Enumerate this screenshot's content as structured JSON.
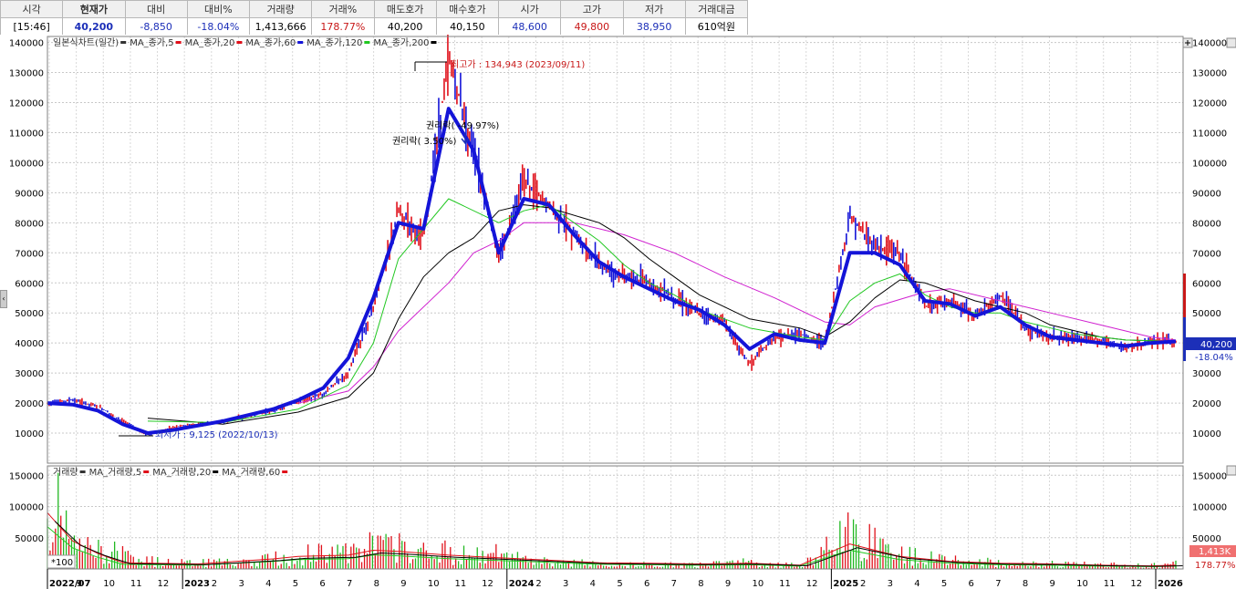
{
  "quote": {
    "headers": [
      "시각",
      "현재가",
      "대비",
      "대비%",
      "거래량",
      "거래%",
      "매도호가",
      "매수호가",
      "시가",
      "고가",
      "저가",
      "거래대금"
    ],
    "values": [
      "[15:46]",
      "40,200",
      "-8,850",
      "-18.04%",
      "1,413,666",
      "178.77%",
      "40,200",
      "40,150",
      "48,600",
      "49,800",
      "38,950",
      "610억원"
    ]
  },
  "price_panel": {
    "legend": [
      {
        "text": "일본식차트(일간)",
        "color": "#333333"
      },
      {
        "text": "MA_종가,5",
        "color": "#e0101a"
      },
      {
        "text": "MA_종가,20",
        "color": "#e0101a"
      },
      {
        "text": "MA_종가,60",
        "color": "#1414d8"
      },
      {
        "text": "MA_종가,120",
        "color": "#22c822"
      },
      {
        "text": "MA_종가,200",
        "color": "#000000"
      }
    ],
    "annotations": {
      "high": "최고가 : 134,943 (2023/09/11)",
      "low": "최저가 : 9,125 (2022/10/13)",
      "rights1": "권리락( -49.97%)",
      "rights2": "권리락( 3.50%)"
    },
    "current_label": "40,200",
    "current_pct": "-18.04%"
  },
  "volume_panel": {
    "legend": [
      {
        "text": "거래량",
        "color": "#333333"
      },
      {
        "text": "MA_거래량,5",
        "color": "#e0101a"
      },
      {
        "text": "MA_거래량,20",
        "color": "#000000"
      },
      {
        "text": "MA_거래량,60",
        "color": "#e0101a"
      }
    ],
    "unit": "*100",
    "current_label": "1,413K",
    "current_pct": "178.77%"
  },
  "chart_data": {
    "type": "line",
    "price_axis": {
      "ticks": [
        10000,
        20000,
        30000,
        40000,
        50000,
        60000,
        70000,
        80000,
        90000,
        100000,
        110000,
        120000,
        130000,
        140000
      ],
      "labels": [
        "10000",
        "20000",
        "30000",
        "40000",
        "50000",
        "60000",
        "70000",
        "80000",
        "90000",
        "100000",
        "110000",
        "120000",
        "130000",
        "140000"
      ]
    },
    "volume_axis": {
      "ticks": [
        50000,
        100000,
        150000
      ],
      "labels": [
        "50000",
        "100000",
        "150000"
      ]
    },
    "x_tick_labels": [
      "2022/07",
      "9",
      "10",
      "11",
      "12",
      "2023",
      "2",
      "3",
      "4",
      "5",
      "6",
      "7",
      "8",
      "9",
      "10",
      "11",
      "12",
      "2024",
      "2",
      "3",
      "4",
      "5",
      "6",
      "7",
      "8",
      "9",
      "10",
      "11",
      "12",
      "2025",
      "2",
      "3",
      "4",
      "5",
      "6",
      "7",
      "8",
      "9",
      "10",
      "11",
      "12",
      "2026"
    ],
    "price_path": [
      [
        0,
        20000
      ],
      [
        1,
        21000
      ],
      [
        2,
        19000
      ],
      [
        3,
        14000
      ],
      [
        4,
        9125
      ],
      [
        5,
        12000
      ],
      [
        6,
        13000
      ],
      [
        7,
        14000
      ],
      [
        8,
        15500
      ],
      [
        9,
        17500
      ],
      [
        10,
        20500
      ],
      [
        11,
        23000
      ],
      [
        12,
        30000
      ],
      [
        13,
        52000
      ],
      [
        14,
        84000
      ],
      [
        15,
        75000
      ],
      [
        16,
        134943
      ],
      [
        17,
        104000
      ],
      [
        18,
        68000
      ],
      [
        19,
        94000
      ],
      [
        20,
        86000
      ],
      [
        21,
        76000
      ],
      [
        22,
        66000
      ],
      [
        23,
        62000
      ],
      [
        24,
        60000
      ],
      [
        25,
        55000
      ],
      [
        26,
        50000
      ],
      [
        27,
        47000
      ],
      [
        28,
        33000
      ],
      [
        29,
        42000
      ],
      [
        30,
        43000
      ],
      [
        31,
        40000
      ],
      [
        32,
        82000
      ],
      [
        33,
        72000
      ],
      [
        34,
        70000
      ],
      [
        35,
        52000
      ],
      [
        36,
        54000
      ],
      [
        37,
        49000
      ],
      [
        38,
        56000
      ],
      [
        39,
        45000
      ],
      [
        40,
        42000
      ],
      [
        41,
        42000
      ],
      [
        42,
        41000
      ],
      [
        43,
        38000
      ],
      [
        44,
        41000
      ],
      [
        45,
        40200
      ]
    ],
    "ma60_path": [
      [
        0,
        20000
      ],
      [
        1,
        19500
      ],
      [
        2,
        17500
      ],
      [
        3,
        13000
      ],
      [
        4,
        10000
      ],
      [
        5,
        11000
      ],
      [
        6,
        12500
      ],
      [
        7,
        14000
      ],
      [
        8,
        16000
      ],
      [
        9,
        18000
      ],
      [
        10,
        21000
      ],
      [
        11,
        25000
      ],
      [
        12,
        35000
      ],
      [
        13,
        55000
      ],
      [
        14,
        80000
      ],
      [
        15,
        78000
      ],
      [
        16,
        118000
      ],
      [
        17,
        104000
      ],
      [
        18,
        70000
      ],
      [
        19,
        88000
      ],
      [
        20,
        86000
      ],
      [
        21,
        76000
      ],
      [
        22,
        67000
      ],
      [
        23,
        62000
      ],
      [
        24,
        58000
      ],
      [
        25,
        54000
      ],
      [
        26,
        51000
      ],
      [
        27,
        46000
      ],
      [
        28,
        38000
      ],
      [
        29,
        43000
      ],
      [
        30,
        41000
      ],
      [
        31,
        40000
      ],
      [
        32,
        70000
      ],
      [
        33,
        70000
      ],
      [
        34,
        66000
      ],
      [
        35,
        54000
      ],
      [
        36,
        53000
      ],
      [
        37,
        49000
      ],
      [
        38,
        52000
      ],
      [
        39,
        46000
      ],
      [
        40,
        42000
      ],
      [
        41,
        41000
      ],
      [
        42,
        40000
      ],
      [
        43,
        39000
      ],
      [
        44,
        40000
      ],
      [
        45,
        40500
      ]
    ],
    "ma120_path": [
      [
        4,
        14000
      ],
      [
        7,
        13500
      ],
      [
        10,
        18000
      ],
      [
        12,
        26000
      ],
      [
        13,
        40000
      ],
      [
        14,
        68000
      ],
      [
        16,
        88000
      ],
      [
        18,
        80000
      ],
      [
        19,
        84000
      ],
      [
        20,
        86000
      ],
      [
        22,
        74000
      ],
      [
        23,
        66000
      ],
      [
        24,
        60000
      ],
      [
        25,
        56000
      ],
      [
        26,
        51000
      ],
      [
        27,
        48000
      ],
      [
        28,
        45000
      ],
      [
        30,
        42000
      ],
      [
        31,
        41000
      ],
      [
        32,
        54000
      ],
      [
        33,
        60000
      ],
      [
        34,
        63000
      ],
      [
        35,
        56000
      ],
      [
        36,
        52000
      ],
      [
        37,
        50000
      ],
      [
        38,
        50000
      ],
      [
        39,
        47000
      ],
      [
        40,
        45000
      ],
      [
        41,
        43000
      ],
      [
        42,
        42000
      ],
      [
        43,
        41000
      ],
      [
        45,
        40500
      ]
    ],
    "ma200_path": [
      [
        4,
        15000
      ],
      [
        7,
        13000
      ],
      [
        10,
        17000
      ],
      [
        12,
        22000
      ],
      [
        13,
        30000
      ],
      [
        14,
        48000
      ],
      [
        15,
        62000
      ],
      [
        16,
        70000
      ],
      [
        17,
        75000
      ],
      [
        18,
        84000
      ],
      [
        19,
        86000
      ],
      [
        20,
        85000
      ],
      [
        22,
        80000
      ],
      [
        23,
        75000
      ],
      [
        24,
        68000
      ],
      [
        25,
        62000
      ],
      [
        26,
        56000
      ],
      [
        27,
        52000
      ],
      [
        28,
        48000
      ],
      [
        30,
        45000
      ],
      [
        31,
        42000
      ],
      [
        32,
        47000
      ],
      [
        33,
        55000
      ],
      [
        34,
        61000
      ],
      [
        35,
        60000
      ],
      [
        36,
        57000
      ],
      [
        37,
        54000
      ],
      [
        38,
        52000
      ],
      [
        39,
        50000
      ],
      [
        40,
        46000
      ],
      [
        41,
        44000
      ],
      [
        42,
        42000
      ],
      [
        43,
        41000
      ],
      [
        45,
        40500
      ]
    ],
    "ma_long_path": [
      [
        10,
        20000
      ],
      [
        12,
        24000
      ],
      [
        13,
        32000
      ],
      [
        14,
        44000
      ],
      [
        16,
        60000
      ],
      [
        17,
        70000
      ],
      [
        18,
        74000
      ],
      [
        19,
        80000
      ],
      [
        21,
        80000
      ],
      [
        23,
        76000
      ],
      [
        25,
        70000
      ],
      [
        27,
        62000
      ],
      [
        29,
        55000
      ],
      [
        31,
        47000
      ],
      [
        32,
        46000
      ],
      [
        33,
        52000
      ],
      [
        35,
        57000
      ],
      [
        36,
        58000
      ],
      [
        38,
        54000
      ],
      [
        40,
        50000
      ],
      [
        42,
        46000
      ],
      [
        44,
        42000
      ],
      [
        45,
        41000
      ]
    ],
    "volume_spikes": [
      [
        0,
        110000
      ],
      [
        0.5,
        160000
      ],
      [
        1,
        60000
      ],
      [
        2,
        50000
      ],
      [
        4,
        20000
      ],
      [
        7,
        15000
      ],
      [
        9,
        25000
      ],
      [
        10,
        30000
      ],
      [
        11,
        55000
      ],
      [
        12,
        35000
      ],
      [
        13,
        62000
      ],
      [
        14,
        55000
      ],
      [
        15,
        50000
      ],
      [
        16,
        40000
      ],
      [
        17,
        30000
      ],
      [
        18,
        40000
      ],
      [
        19,
        25000
      ],
      [
        20,
        20000
      ],
      [
        21,
        15000
      ],
      [
        22,
        12000
      ],
      [
        24,
        10000
      ],
      [
        26,
        10000
      ],
      [
        28,
        18000
      ],
      [
        30,
        8000
      ],
      [
        32,
        85000
      ],
      [
        33,
        60000
      ],
      [
        34,
        35000
      ],
      [
        36,
        20000
      ],
      [
        38,
        15000
      ],
      [
        40,
        12000
      ],
      [
        42,
        10000
      ],
      [
        44,
        8000
      ],
      [
        45,
        14000
      ]
    ],
    "volume_ma_path": [
      [
        0,
        90000
      ],
      [
        1,
        45000
      ],
      [
        2,
        25000
      ],
      [
        3,
        10000
      ],
      [
        6,
        8000
      ],
      [
        9,
        16000
      ],
      [
        10,
        20000
      ],
      [
        12,
        22000
      ],
      [
        13,
        30000
      ],
      [
        14,
        28000
      ],
      [
        16,
        22000
      ],
      [
        18,
        18000
      ],
      [
        20,
        14000
      ],
      [
        22,
        10000
      ],
      [
        24,
        9000
      ],
      [
        26,
        8000
      ],
      [
        28,
        9000
      ],
      [
        30,
        6000
      ],
      [
        32,
        40000
      ],
      [
        33,
        30000
      ],
      [
        34,
        20000
      ],
      [
        36,
        12000
      ],
      [
        38,
        9000
      ],
      [
        40,
        8000
      ],
      [
        42,
        6000
      ],
      [
        44,
        5000
      ],
      [
        45,
        6000
      ]
    ]
  }
}
